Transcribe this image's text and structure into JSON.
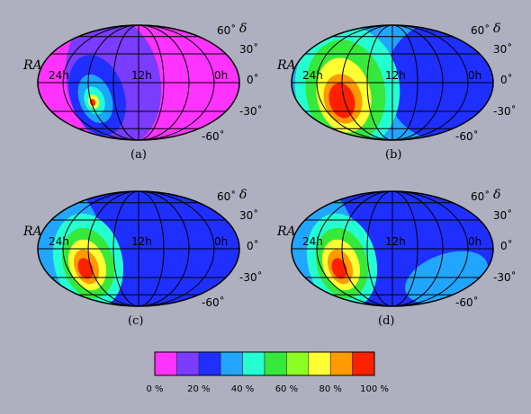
{
  "panels": [
    {
      "id": "a",
      "caption": "(a)",
      "ra_label": "RA",
      "dec_symbol": "δ",
      "labels": {
        "ra_24h": "24h",
        "ra_12h": "12h",
        "ra_0h": "0h",
        "dec_60p": "60˚",
        "dec_30p": "30˚",
        "dec_0": "0˚",
        "dec_30m": "-30˚",
        "dec_60m": "-60˚"
      },
      "background_color": "#ff33ff",
      "colors": {
        "mid": "#7a3cff",
        "ring1": "#1f2fff",
        "ring2": "#1aa6ff",
        "ring3": "#20ffd6",
        "hot": "#ffff33",
        "core": "#ff2a00"
      }
    },
    {
      "id": "b",
      "caption": "(b)",
      "ra_label": "RA",
      "dec_symbol": "δ",
      "labels": {
        "ra_24h": "24h",
        "ra_12h": "12h",
        "ra_0h": "0h",
        "dec_60p": "60˚",
        "dec_30p": "30˚",
        "dec_0": "0˚",
        "dec_30m": "-30˚",
        "dec_60m": "-60˚"
      },
      "background_color": "#21a6ff",
      "colors": {
        "blue": "#1f2fff",
        "cyan": "#24ffd2",
        "green": "#36e83c",
        "yellow": "#ffff33",
        "orange": "#ff9a00",
        "red": "#ff2000"
      }
    },
    {
      "id": "c",
      "caption": "(c)",
      "ra_label": "RA",
      "dec_symbol": "δ",
      "labels": {
        "ra_24h": "24h",
        "ra_12h": "12h",
        "ra_0h": "0h",
        "dec_60p": "60˚",
        "dec_30p": "30˚",
        "dec_0": "0˚",
        "dec_30m": "-30˚",
        "dec_60m": "-60˚"
      },
      "background_color": "#1f2fff",
      "colors": {
        "lightblue": "#21a6ff",
        "cyan": "#24ffd2",
        "green": "#36e83c",
        "yellow": "#ffff33",
        "orange": "#ff9a00",
        "red": "#ff2000"
      }
    },
    {
      "id": "d",
      "caption": "(d)",
      "ra_label": "RA",
      "dec_symbol": "δ",
      "labels": {
        "ra_24h": "24h",
        "ra_12h": "12h",
        "ra_0h": "0h",
        "dec_60p": "60˚",
        "dec_30p": "30˚",
        "dec_0": "0˚",
        "dec_30m": "-30˚",
        "dec_60m": "-60˚"
      },
      "background_color": "#1f2fff",
      "colors": {
        "lightblue": "#21a6ff",
        "cyan": "#24ffd2",
        "green": "#36e83c",
        "yellow": "#ffff33",
        "orange": "#ff9a00",
        "red": "#ff2000"
      }
    }
  ],
  "colorbar": {
    "colors": [
      "#ff33ff",
      "#7a3cff",
      "#1f2fff",
      "#21a6ff",
      "#24ffd2",
      "#36e83c",
      "#8cff22",
      "#ffff33",
      "#ff9a00",
      "#ff2000"
    ],
    "tick_labels": [
      "0 %",
      "20 %",
      "40 %",
      "60 %",
      "80 %",
      "100 %"
    ]
  }
}
